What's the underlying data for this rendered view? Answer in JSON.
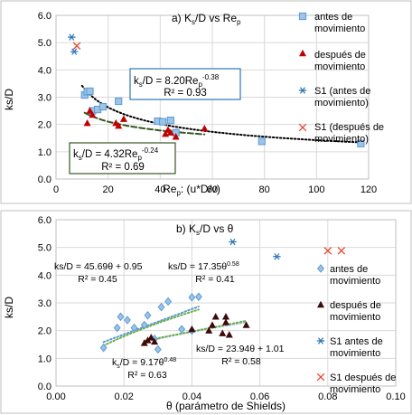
{
  "chart_data": [
    {
      "type": "scatter",
      "title_parts": [
        "a) K",
        "s",
        "/D vs Re",
        "p"
      ],
      "xlabel_parts": [
        "Re",
        "p",
        ": (u*D/ν)"
      ],
      "ylabel": "ks/D",
      "xlim": [
        0,
        120
      ],
      "ylim": [
        0,
        6
      ],
      "xticks": [
        0,
        20,
        40,
        60,
        80,
        100,
        120
      ],
      "xtick_labels": [
        "0",
        "20",
        "40",
        "60",
        "80",
        "100",
        "120"
      ],
      "yticks": [
        0,
        1,
        2,
        3,
        4,
        5,
        6
      ],
      "ytick_labels": [
        "0.0",
        "1.0",
        "2.0",
        "3.0",
        "4.0",
        "5.0",
        "6.0"
      ],
      "grid": true,
      "legend_position": "right",
      "series": [
        {
          "name": "antes de movimiento",
          "marker": "square",
          "color": "#5b9bd5",
          "points": [
            [
              11,
              3.08
            ],
            [
              12,
              3.2
            ],
            [
              13,
              3.22
            ],
            [
              14,
              2.5
            ],
            [
              16,
              2.55
            ],
            [
              18,
              2.65
            ],
            [
              24,
              2.85
            ],
            [
              39,
              2.12
            ],
            [
              41,
              2.1
            ],
            [
              44,
              2.15
            ],
            [
              46,
              1.7
            ],
            [
              79,
              1.38
            ],
            [
              117,
              1.3
            ]
          ]
        },
        {
          "name": "después de movimiento",
          "marker": "triangle",
          "color": "#c00000",
          "points": [
            [
              12,
              2.05
            ],
            [
              13,
              2.5
            ],
            [
              14,
              2.35
            ],
            [
              23,
              2.05
            ],
            [
              24,
              1.95
            ],
            [
              26,
              2.2
            ],
            [
              42,
              1.65
            ],
            [
              43,
              1.8
            ],
            [
              44,
              1.7
            ],
            [
              46,
              1.55
            ],
            [
              57,
              1.85
            ]
          ]
        },
        {
          "name": "S1 (antes de movimiento)",
          "marker": "star",
          "color": "#2e75b6",
          "points": [
            [
              6,
              5.2
            ],
            [
              7,
              4.67
            ]
          ]
        },
        {
          "name": "S1 (después de movimiento)",
          "marker": "x",
          "color": "#e8452a",
          "points": [
            [
              8,
              4.88
            ]
          ]
        }
      ],
      "trendlines": [
        {
          "series": "antes de movimiento",
          "equation_parts": [
            "k",
            "s",
            "/D = 8.20Re",
            "p",
            "-0.38"
          ],
          "r2": "R² = 0.93",
          "style": "dotted",
          "color": "#000000",
          "a": 8.2,
          "b": -0.38,
          "x_range": [
            10,
            117
          ]
        },
        {
          "series": "después de movimiento",
          "equation_parts": [
            "k",
            "s",
            "/D = 4.32Re",
            "p",
            "-0.24"
          ],
          "r2": "R² = 0.69",
          "style": "dashed",
          "color": "#375623",
          "a": 4.32,
          "b": -0.24,
          "x_range": [
            11,
            57
          ]
        }
      ]
    },
    {
      "type": "scatter",
      "title_parts": [
        "b) K",
        "s",
        "/D vs θ"
      ],
      "xlabel": "θ (parámetro de Shields)",
      "ylabel": "ks/D",
      "xlim": [
        0,
        0.1
      ],
      "ylim": [
        0,
        6
      ],
      "xticks": [
        0,
        0.02,
        0.04,
        0.06,
        0.08,
        0.1
      ],
      "xtick_labels": [
        "0.00",
        "0.02",
        "0.04",
        "0.06",
        "0.08",
        "0.10"
      ],
      "yticks": [
        0,
        1,
        2,
        3,
        4,
        5,
        6
      ],
      "ytick_labels": [
        "0.0",
        "1.0",
        "2.0",
        "3.0",
        "4.0",
        "5.0",
        "6.0"
      ],
      "grid": true,
      "legend_position": "right",
      "series": [
        {
          "name": "antes de movimiento",
          "marker": "diamond",
          "color": "#5b9bd5",
          "points": [
            [
              0.014,
              1.38
            ],
            [
              0.018,
              2.1
            ],
            [
              0.019,
              2.5
            ],
            [
              0.021,
              2.38
            ],
            [
              0.023,
              2.1
            ],
            [
              0.026,
              2.2
            ],
            [
              0.027,
              2.55
            ],
            [
              0.029,
              1.7
            ],
            [
              0.03,
              1.32
            ],
            [
              0.031,
              2.85
            ],
            [
              0.033,
              3.05
            ],
            [
              0.037,
              2.05
            ],
            [
              0.04,
              2.0
            ],
            [
              0.04,
              3.2
            ],
            [
              0.042,
              3.22
            ]
          ]
        },
        {
          "name": "después de movimiento",
          "marker": "triangle",
          "color": "#3d0a0a",
          "points": [
            [
              0.026,
              1.55
            ],
            [
              0.027,
              1.65
            ],
            [
              0.028,
              1.75
            ],
            [
              0.029,
              1.6
            ],
            [
              0.04,
              2.05
            ],
            [
              0.045,
              2.0
            ],
            [
              0.046,
              2.2
            ],
            [
              0.047,
              2.5
            ],
            [
              0.049,
              1.9
            ],
            [
              0.05,
              2.3
            ],
            [
              0.05,
              2.5
            ],
            [
              0.051,
              1.85
            ],
            [
              0.056,
              2.2
            ]
          ]
        },
        {
          "name": "S1 antes de movimiento",
          "marker": "star",
          "color": "#2e75b6",
          "points": [
            [
              0.052,
              5.2
            ],
            [
              0.065,
              4.67
            ]
          ]
        },
        {
          "name": "S1 después de movimiento",
          "marker": "x",
          "color": "#e8452a",
          "points": [
            [
              0.08,
              4.88
            ],
            [
              0.084,
              4.88
            ]
          ]
        }
      ],
      "trendlines": [
        {
          "kind": "linear",
          "equation": "ks/D = 45.69θ + 0.95",
          "r2": "R² = 0.45",
          "style": "dotted",
          "color": "#5b9bd5",
          "a": 45.69,
          "b": 0.95,
          "x_range": [
            0.014,
            0.042
          ]
        },
        {
          "kind": "power",
          "equation_parts": [
            "ks/D = 17.35θ",
            "0.58"
          ],
          "r2": "R² = 0.41",
          "style": "dotted",
          "color": "#70ad47",
          "a": 17.35,
          "b": 0.58,
          "x_range": [
            0.014,
            0.042
          ]
        },
        {
          "kind": "power",
          "equation_parts": [
            "k",
            "s",
            "/D = 9.17θ",
            "0.48"
          ],
          "r2": "R² = 0.63",
          "style": "dotted",
          "color": "#9dc3e6",
          "a": 9.17,
          "b": 0.48,
          "x_range": [
            0.026,
            0.056
          ]
        },
        {
          "kind": "linear",
          "equation": "ks/D = 23.94θ + 1.01",
          "r2": "R² = 0.58",
          "style": "dotted",
          "color": "#70ad47",
          "a": 23.94,
          "b": 1.01,
          "x_range": [
            0.026,
            0.056
          ]
        }
      ]
    }
  ]
}
